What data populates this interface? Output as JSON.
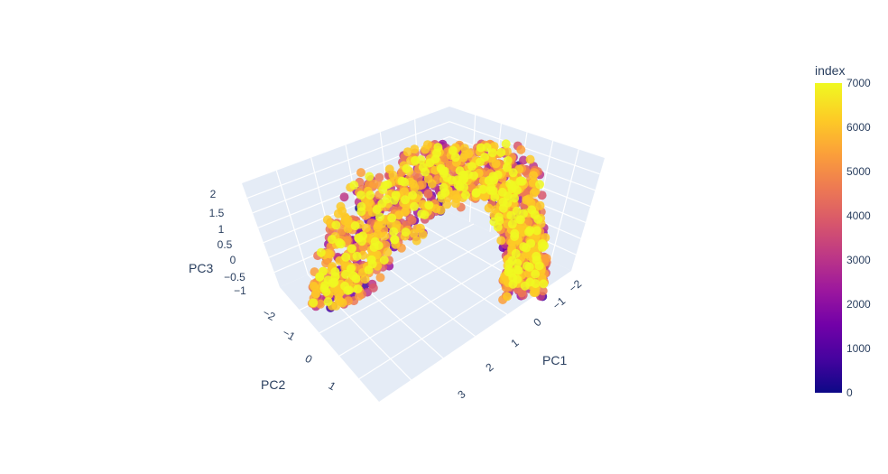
{
  "chart_data": {
    "type": "scatter",
    "subtype": "3d-scatter",
    "xlabel": "PC1",
    "ylabel": "PC2",
    "zlabel": "PC3",
    "x_ticks": [
      "−2",
      "−1",
      "0",
      "1",
      "2",
      "3"
    ],
    "y_ticks": [
      "−2",
      "−1",
      "0",
      "1"
    ],
    "z_ticks": [
      "2",
      "1.5",
      "1",
      "0.5",
      "0",
      "−0.5",
      "−1"
    ],
    "xlim": [
      -2.5,
      3.5
    ],
    "ylim": [
      -2.5,
      1.8
    ],
    "zlim": [
      -1.2,
      2.1
    ],
    "grid": true,
    "color_by": "index",
    "colorbar": {
      "title": "index",
      "ticks": [
        "7000",
        "6000",
        "5000",
        "4000",
        "3000",
        "2000",
        "1000",
        "0"
      ],
      "range": [
        0,
        7000
      ],
      "colorscale": [
        "#0d0887",
        "#46039f",
        "#7201a8",
        "#9c179e",
        "#bd3786",
        "#d8576b",
        "#ed7953",
        "#fb9f3a",
        "#fdca26",
        "#f0f921"
      ]
    },
    "point_count_approx": 7000,
    "point_cloud_description": "Dense arch-shaped cloud; higher index (yellow) points dominate the visible surface"
  },
  "colors": {
    "scene_bg": "#e5ecf6",
    "grid": "#ffffff",
    "text": "#2a3f5f"
  }
}
